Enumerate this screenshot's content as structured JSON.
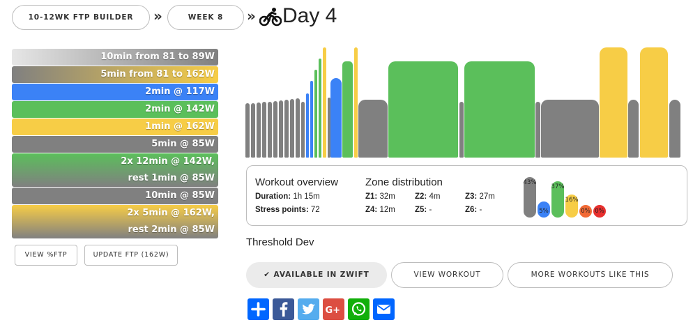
{
  "breadcrumb": {
    "plan_label": "10-12wk FTP Builder",
    "week_label": "Week 8",
    "separator": "»",
    "day_title": "Day 4"
  },
  "intervals": [
    {
      "text": "10min from 81 to 89W",
      "zone": "Z1 ramp"
    },
    {
      "text": "5min from 81 to 162W",
      "zone": "ramp"
    },
    {
      "text": "2min @ 117W",
      "zone": "Z2"
    },
    {
      "text": "2min @ 142W",
      "zone": "Z3"
    },
    {
      "text": "1min @ 162W",
      "zone": "Z4"
    },
    {
      "text": "5min @ 85W",
      "zone": "Z1"
    },
    {
      "text": "2x 12min @ 142W,",
      "text2": "rest 1min @ 85W",
      "zone": "Z3/Z1"
    },
    {
      "text": "10min @ 85W",
      "zone": "Z1"
    },
    {
      "text": "2x 5min @ 162W,",
      "text2": "rest 2min @ 85W",
      "zone": "Z4/Z1"
    }
  ],
  "buttons": {
    "view_ftp": "View %FTP",
    "update_ftp": "Update FTP (162W)"
  },
  "overview": {
    "title": "Workout overview",
    "duration_label": "Duration:",
    "duration_value": "1h 15m",
    "stress_label": "Stress points:",
    "stress_value": "72"
  },
  "zones": {
    "title": "Zone distribution",
    "z1_label": "Z1:",
    "z1_value": "32m",
    "z2_label": "Z2:",
    "z2_value": "4m",
    "z3_label": "Z3:",
    "z3_value": "27m",
    "z4_label": "Z4:",
    "z4_value": "12m",
    "z5_label": "Z5:",
    "z5_value": "-",
    "z6_label": "Z6:",
    "z6_value": "-",
    "chart": [
      {
        "zone": "Z1",
        "percent": 43,
        "label": "43%",
        "color": "#808080"
      },
      {
        "zone": "Z2",
        "percent": 5,
        "label": "5%",
        "color": "#3b82f6"
      },
      {
        "zone": "Z3",
        "percent": 37,
        "label": "37%",
        "color": "#5bbf5b"
      },
      {
        "zone": "Z4",
        "percent": 16,
        "label": "16%",
        "color": "#f7cd46"
      },
      {
        "zone": "Z5",
        "percent": 0,
        "label": "0%",
        "color": "#f26a35"
      },
      {
        "zone": "Z6",
        "percent": 0,
        "label": "0%",
        "color": "#e8302e"
      }
    ]
  },
  "workout_name": "Threshold Dev",
  "actions": {
    "available": "✔ Available in Zwift",
    "view_workout": "View workout",
    "more_like_this": "More workouts like this"
  },
  "share_icons": [
    "add-icon",
    "facebook-icon",
    "twitter-icon",
    "google-plus-icon",
    "whatsapp-icon",
    "email-icon"
  ],
  "colors": {
    "z1": "#808080",
    "z2": "#3b82f6",
    "z3": "#5bbf5b",
    "z4": "#f7cd46",
    "z5": "#f26a35",
    "z6": "#e8302e"
  }
}
